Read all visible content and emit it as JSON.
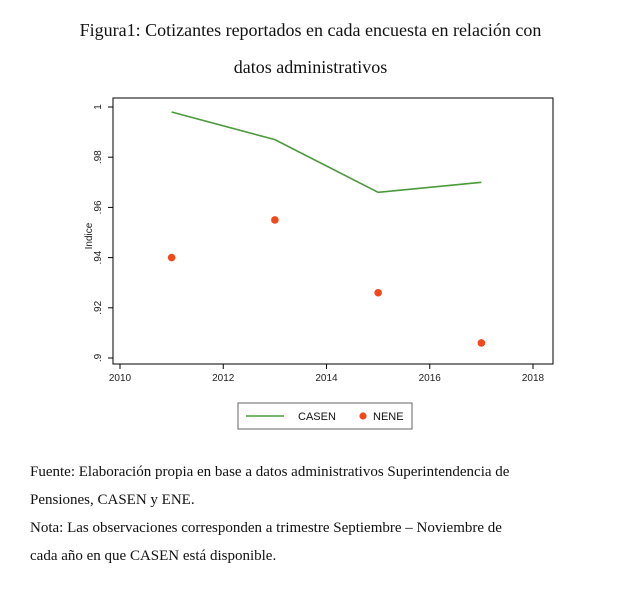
{
  "figure": {
    "title_line1": "Figura1: Cotizantes reportados en cada encuesta en relación con",
    "title_line2": "datos administrativos"
  },
  "chart_data": {
    "type": "line",
    "title": "Figura1: Cotizantes reportados en cada encuesta en relación con datos administrativos",
    "xlabel": "",
    "ylabel": "Indice",
    "xlim": [
      2010,
      2018
    ],
    "ylim": [
      0.9,
      1.0
    ],
    "xticks": [
      "2010",
      "2012",
      "2014",
      "2016",
      "2018"
    ],
    "yticks": [
      ".9",
      ".92",
      ".94",
      ".96",
      ".98",
      "1"
    ],
    "grid": false,
    "legend_position": "bottom",
    "series": [
      {
        "name": "CASEN",
        "type": "line",
        "color": "#4a9a3a",
        "x": [
          2011,
          2013,
          2015,
          2017
        ],
        "y": [
          0.998,
          0.987,
          0.966,
          0.97
        ]
      },
      {
        "name": "NENE",
        "type": "scatter",
        "color": "#f04a1c",
        "x": [
          2011,
          2013,
          2015,
          2017
        ],
        "y": [
          0.94,
          0.955,
          0.926,
          0.906
        ]
      }
    ]
  },
  "notes": {
    "source_line1": "Fuente: Elaboración propia en base a datos administrativos Superintendencia de",
    "source_line2": "Pensiones, CASEN y ENE.",
    "note_line1": "Nota: Las observaciones corresponden a trimestre Septiembre – Noviembre de",
    "note_line2": "cada año en que CASEN está disponible."
  }
}
